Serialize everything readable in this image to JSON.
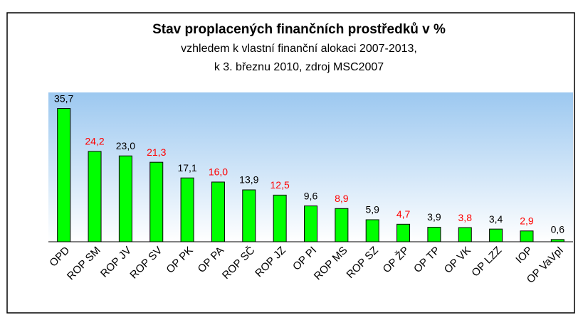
{
  "chart_data": {
    "type": "bar",
    "title": "Stav proplacených finančních prostředků v %",
    "subtitle": [
      "vzhledem k vlastní finanční alokaci 2007-2013,",
      "k 3. březnu 2010, zdroj MSC2007"
    ],
    "categories": [
      "OPD",
      "ROP SM",
      "ROP JV",
      "ROP SV",
      "OP PK",
      "OP PA",
      "ROP SČ",
      "ROP JZ",
      "OP PI",
      "ROP MS",
      "ROP SZ",
      "OP ŽP",
      "OP TP",
      "OP VK",
      "OP LZZ",
      "IOP",
      "OP VaVpI"
    ],
    "values": [
      35.7,
      24.2,
      23.0,
      21.3,
      17.1,
      16.0,
      13.9,
      12.5,
      9.6,
      8.9,
      5.9,
      4.7,
      3.9,
      3.8,
      3.4,
      2.9,
      0.6
    ],
    "value_labels": [
      "35,7",
      "24,2",
      "23,0",
      "21,3",
      "17,1",
      "16,0",
      "13,9",
      "12,5",
      "9,6",
      "8,9",
      "5,9",
      "4,7",
      "3,9",
      "3,8",
      "3,4",
      "2,9",
      "0,6"
    ],
    "value_label_colors": [
      "#000000",
      "#ff0000",
      "#000000",
      "#ff0000",
      "#000000",
      "#ff0000",
      "#000000",
      "#ff0000",
      "#000000",
      "#ff0000",
      "#000000",
      "#ff0000",
      "#000000",
      "#ff0000",
      "#000000",
      "#ff0000",
      "#000000"
    ],
    "color": "#00ff00",
    "ylim": [
      0,
      40
    ]
  }
}
